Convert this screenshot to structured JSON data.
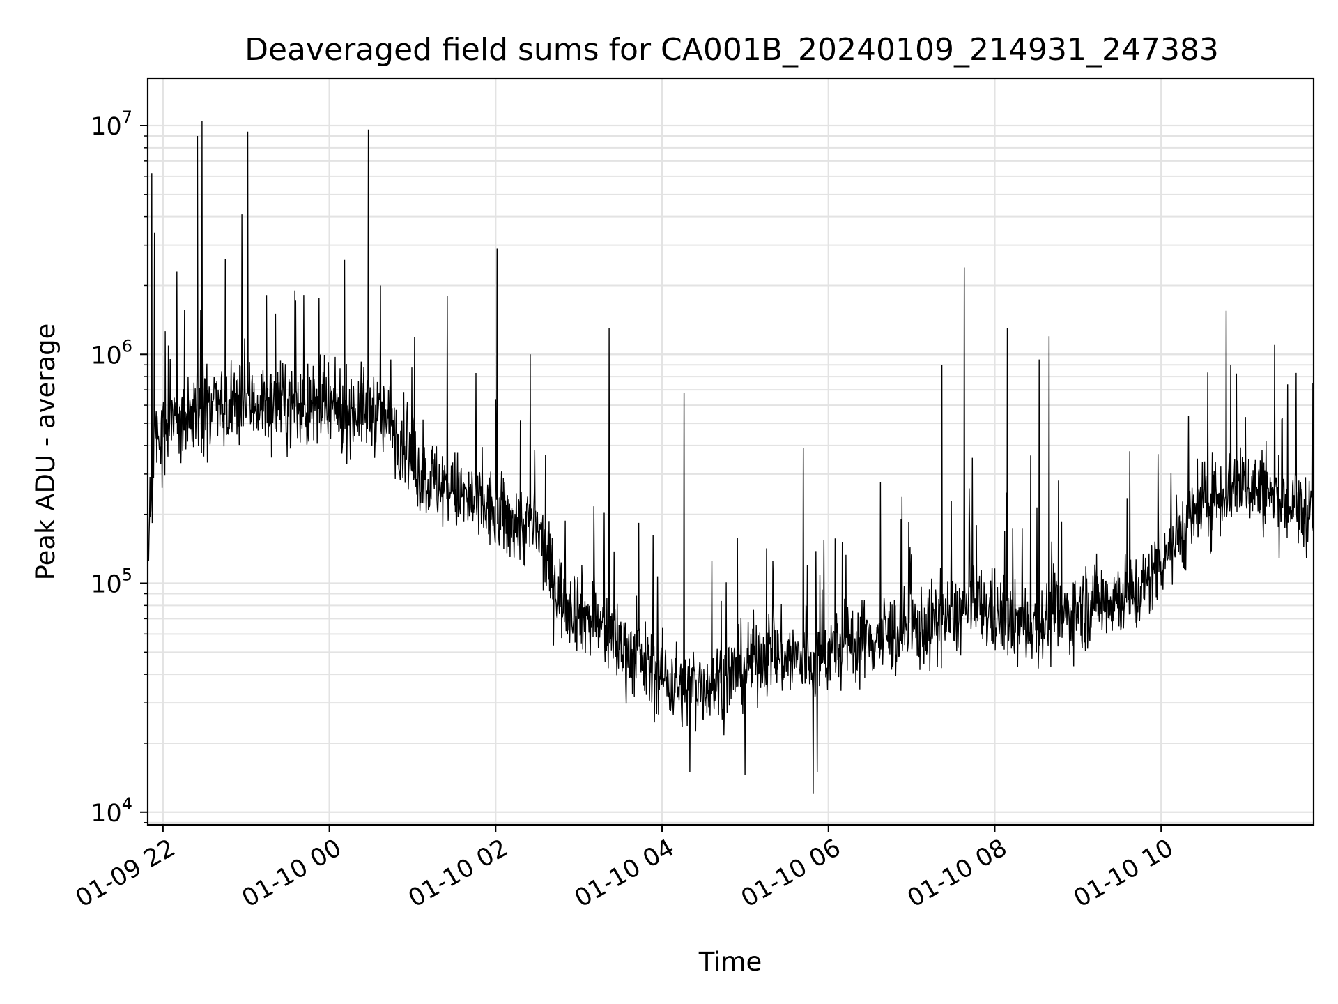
{
  "chart_data": {
    "type": "line",
    "title": "Deaveraged field sums for CA001B_20240109_214931_247383",
    "xlabel": "Time",
    "ylabel": "Peak ADU - average",
    "yscale": "log",
    "ylim": [
      8800,
      16000000
    ],
    "xlim": [
      "2024-01-09 21:49",
      "2024-01-10 11:50"
    ],
    "grid": true,
    "line_color": "#000000",
    "x_ticks": [
      {
        "x": "2024-01-09 22:00",
        "label": "01-09 22"
      },
      {
        "x": "2024-01-10 00:00",
        "label": "01-10 00"
      },
      {
        "x": "2024-01-10 02:00",
        "label": "01-10 02"
      },
      {
        "x": "2024-01-10 04:00",
        "label": "01-10 04"
      },
      {
        "x": "2024-01-10 06:00",
        "label": "01-10 06"
      },
      {
        "x": "2024-01-10 08:00",
        "label": "01-10 08"
      },
      {
        "x": "2024-01-10 10:00",
        "label": "01-10 10"
      }
    ],
    "y_ticks": [
      {
        "value": 10000,
        "base": "10",
        "exp": "4"
      },
      {
        "value": 100000,
        "base": "10",
        "exp": "5"
      },
      {
        "value": 1000000,
        "base": "10",
        "exp": "6"
      },
      {
        "value": 10000000,
        "base": "10",
        "exp": "7"
      }
    ],
    "trend": [
      {
        "x": "2024-01-09 21:49",
        "y": 140000
      },
      {
        "x": "2024-01-09 21:55",
        "y": 450000
      },
      {
        "x": "2024-01-09 22:30",
        "y": 560000
      },
      {
        "x": "2024-01-09 23:00",
        "y": 620000
      },
      {
        "x": "2024-01-09 23:30",
        "y": 600000
      },
      {
        "x": "2024-01-10 00:00",
        "y": 560000
      },
      {
        "x": "2024-01-10 00:30",
        "y": 580000
      },
      {
        "x": "2024-01-10 00:50",
        "y": 460000
      },
      {
        "x": "2024-01-10 01:05",
        "y": 300000
      },
      {
        "x": "2024-01-10 01:30",
        "y": 250000
      },
      {
        "x": "2024-01-10 02:00",
        "y": 200000
      },
      {
        "x": "2024-01-10 02:30",
        "y": 170000
      },
      {
        "x": "2024-01-10 02:45",
        "y": 90000
      },
      {
        "x": "2024-01-10 03:15",
        "y": 65000
      },
      {
        "x": "2024-01-10 03:45",
        "y": 45000
      },
      {
        "x": "2024-01-10 04:15",
        "y": 35000
      },
      {
        "x": "2024-01-10 04:45",
        "y": 38000
      },
      {
        "x": "2024-01-10 05:15",
        "y": 50000
      },
      {
        "x": "2024-01-10 05:45",
        "y": 45000
      },
      {
        "x": "2024-01-10 06:15",
        "y": 55000
      },
      {
        "x": "2024-01-10 06:45",
        "y": 60000
      },
      {
        "x": "2024-01-10 07:15",
        "y": 65000
      },
      {
        "x": "2024-01-10 07:45",
        "y": 80000
      },
      {
        "x": "2024-01-10 08:15",
        "y": 65000
      },
      {
        "x": "2024-01-10 08:45",
        "y": 70000
      },
      {
        "x": "2024-01-10 09:15",
        "y": 85000
      },
      {
        "x": "2024-01-10 09:45",
        "y": 90000
      },
      {
        "x": "2024-01-10 10:00",
        "y": 130000
      },
      {
        "x": "2024-01-10 10:30",
        "y": 220000
      },
      {
        "x": "2024-01-10 11:00",
        "y": 280000
      },
      {
        "x": "2024-01-10 11:30",
        "y": 220000
      },
      {
        "x": "2024-01-10 11:50",
        "y": 200000
      }
    ],
    "spikes": [
      {
        "x": "2024-01-09 21:52",
        "y": 6200000
      },
      {
        "x": "2024-01-09 21:54",
        "y": 3400000
      },
      {
        "x": "2024-01-09 22:10",
        "y": 2300000
      },
      {
        "x": "2024-01-09 22:25",
        "y": 9000000
      },
      {
        "x": "2024-01-09 22:28",
        "y": 10500000
      },
      {
        "x": "2024-01-09 22:45",
        "y": 2600000
      },
      {
        "x": "2024-01-09 22:57",
        "y": 4100000
      },
      {
        "x": "2024-01-09 23:01",
        "y": 9400000
      },
      {
        "x": "2024-01-09 23:35",
        "y": 1900000
      },
      {
        "x": "2024-01-10 00:28",
        "y": 9600000
      },
      {
        "x": "2024-01-10 01:25",
        "y": 1800000
      },
      {
        "x": "2024-01-10 02:01",
        "y": 2900000
      },
      {
        "x": "2024-01-10 02:25",
        "y": 1000000
      },
      {
        "x": "2024-01-10 03:22",
        "y": 1300000
      },
      {
        "x": "2024-01-10 04:16",
        "y": 680000
      },
      {
        "x": "2024-01-10 05:42",
        "y": 390000
      },
      {
        "x": "2024-01-10 07:22",
        "y": 900000
      },
      {
        "x": "2024-01-10 07:38",
        "y": 2400000
      },
      {
        "x": "2024-01-10 08:09",
        "y": 1300000
      },
      {
        "x": "2024-01-10 08:32",
        "y": 950000
      },
      {
        "x": "2024-01-10 08:39",
        "y": 1200000
      },
      {
        "x": "2024-01-10 10:47",
        "y": 1550000
      },
      {
        "x": "2024-01-10 10:50",
        "y": 900000
      },
      {
        "x": "2024-01-10 11:22",
        "y": 1100000
      }
    ],
    "dips": [
      {
        "x": "2024-01-10 05:49",
        "y": 12000
      },
      {
        "x": "2024-01-10 05:52",
        "y": 15000
      },
      {
        "x": "2024-01-10 04:20",
        "y": 15000
      },
      {
        "x": "2024-01-10 05:00",
        "y": 14500
      }
    ]
  }
}
